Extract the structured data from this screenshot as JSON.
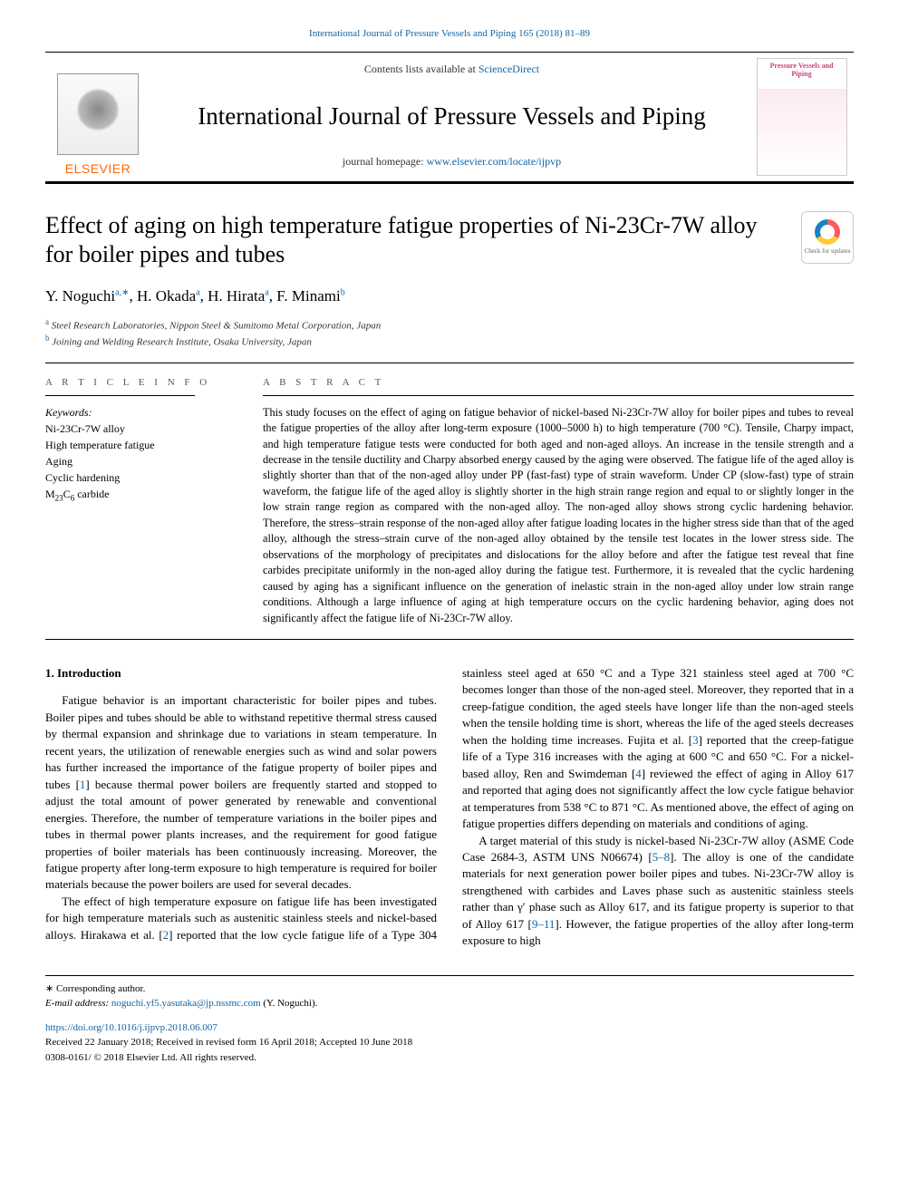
{
  "header": {
    "citation_link": "International Journal of Pressure Vessels and Piping 165 (2018) 81–89",
    "contents_prefix": "Contents lists available at ",
    "contents_link": "ScienceDirect",
    "journal_name": "International Journal of Pressure Vessels and Piping",
    "homepage_prefix": "journal homepage: ",
    "homepage_url": "www.elsevier.com/locate/ijpvp",
    "publisher_name": "ELSEVIER",
    "cover_title": "Pressure Vessels and Piping"
  },
  "title": "Effect of aging on high temperature fatigue properties of Ni-23Cr-7W alloy for boiler pipes and tubes",
  "updates_badge": "Check for updates",
  "authors_html": "Y. Noguchi|a,*|, H. Okada|a|, H. Hirata|a|, F. Minami|b|",
  "authors": [
    {
      "name": "Y. Noguchi",
      "sup": "a,∗"
    },
    {
      "name": "H. Okada",
      "sup": "a"
    },
    {
      "name": "H. Hirata",
      "sup": "a"
    },
    {
      "name": "F. Minami",
      "sup": "b"
    }
  ],
  "affiliations": [
    {
      "sup": "a",
      "text": "Steel Research Laboratories, Nippon Steel & Sumitomo Metal Corporation, Japan"
    },
    {
      "sup": "b",
      "text": "Joining and Welding Research Institute, Osaka University, Japan"
    }
  ],
  "article_info": {
    "label": "A R T I C L E  I N F O",
    "keywords_label": "Keywords:",
    "keywords": [
      "Ni-23Cr-7W alloy",
      "High temperature fatigue",
      "Aging",
      "Cyclic hardening",
      "M₂₃C₆ carbide"
    ]
  },
  "abstract": {
    "label": "A B S T R A C T",
    "text": "This study focuses on the effect of aging on fatigue behavior of nickel-based Ni-23Cr-7W alloy for boiler pipes and tubes to reveal the fatigue properties of the alloy after long-term exposure (1000–5000 h) to high temperature (700 °C). Tensile, Charpy impact, and high temperature fatigue tests were conducted for both aged and non-aged alloys. An increase in the tensile strength and a decrease in the tensile ductility and Charpy absorbed energy caused by the aging were observed. The fatigue life of the aged alloy is slightly shorter than that of the non-aged alloy under PP (fast-fast) type of strain waveform. Under CP (slow-fast) type of strain waveform, the fatigue life of the aged alloy is slightly shorter in the high strain range region and equal to or slightly longer in the low strain range region as compared with the non-aged alloy. The non-aged alloy shows strong cyclic hardening behavior. Therefore, the stress–strain response of the non-aged alloy after fatigue loading locates in the higher stress side than that of the aged alloy, although the stress–strain curve of the non-aged alloy obtained by the tensile test locates in the lower stress side. The observations of the morphology of precipitates and dislocations for the alloy before and after the fatigue test reveal that fine carbides precipitate uniformly in the non-aged alloy during the fatigue test. Furthermore, it is revealed that the cyclic hardening caused by aging has a significant influence on the generation of inelastic strain in the non-aged alloy under low strain range conditions. Although a large influence of aging at high temperature occurs on the cyclic hardening behavior, aging does not significantly affect the fatigue life of Ni-23Cr-7W alloy."
  },
  "body": {
    "intro_heading": "1. Introduction",
    "paragraphs": [
      "Fatigue behavior is an important characteristic for boiler pipes and tubes. Boiler pipes and tubes should be able to withstand repetitive thermal stress caused by thermal expansion and shrinkage due to variations in steam temperature. In recent years, the utilization of renewable energies such as wind and solar powers has further increased the importance of the fatigue property of boiler pipes and tubes [1] because thermal power boilers are frequently started and stopped to adjust the total amount of power generated by renewable and conventional energies. Therefore, the number of temperature variations in the boiler pipes and tubes in thermal power plants increases, and the requirement for good fatigue properties of boiler materials has been continuously increasing. Moreover, the fatigue property after long-term exposure to high temperature is required for boiler materials because the power boilers are used for several decades.",
      "The effect of high temperature exposure on fatigue life has been investigated for high temperature materials such as austenitic stainless steels and nickel-based alloys. Hirakawa et al. [2] reported that the low cycle fatigue life of a Type 304 stainless steel aged at 650 °C and a Type 321 stainless steel aged at 700 °C becomes longer than those of the non-aged steel. Moreover, they reported that in a creep-fatigue condition, the aged steels have longer life than the non-aged steels when the tensile holding time is short, whereas the life of the aged steels decreases when the holding time increases. Fujita et al. [3] reported that the creep-fatigue life of a Type 316 increases with the aging at 600 °C and 650 °C. For a nickel-based alloy, Ren and Swimdeman [4] reviewed the effect of aging in Alloy 617 and reported that aging does not significantly affect the low cycle fatigue behavior at temperatures from 538 °C to 871 °C. As mentioned above, the effect of aging on fatigue properties differs depending on materials and conditions of aging.",
      "A target material of this study is nickel-based Ni-23Cr-7W alloy (ASME Code Case 2684-3, ASTM UNS N06674) [5–8]. The alloy is one of the candidate materials for next generation power boiler pipes and tubes. Ni-23Cr-7W alloy is strengthened with carbides and Laves phase such as austenitic stainless steels rather than γ′ phase such as Alloy 617, and its fatigue property is superior to that of Alloy 617 [9–11]. However, the fatigue properties of the alloy after long-term exposure to high"
    ]
  },
  "footnotes": {
    "corresponding": "∗ Corresponding author.",
    "email_label": "E-mail address: ",
    "email": "noguchi.yf5.yasutaka@jp.nssmc.com",
    "email_suffix": " (Y. Noguchi).",
    "doi": "https://doi.org/10.1016/j.ijpvp.2018.06.007",
    "history": "Received 22 January 2018; Received in revised form 16 April 2018; Accepted 10 June 2018",
    "copyright": "0308-0161/ © 2018 Elsevier Ltd. All rights reserved."
  },
  "colors": {
    "link": "#1264a3",
    "publisher": "#ff6600",
    "cover_accent": "#d0417e",
    "text": "#000000",
    "background": "#ffffff"
  },
  "typography": {
    "body_family": "Times New Roman",
    "journal_name_size_pt": 20,
    "article_title_size_pt": 19,
    "authors_size_pt": 13,
    "abstract_size_pt": 9,
    "body_size_pt": 10,
    "footnote_size_pt": 8
  }
}
